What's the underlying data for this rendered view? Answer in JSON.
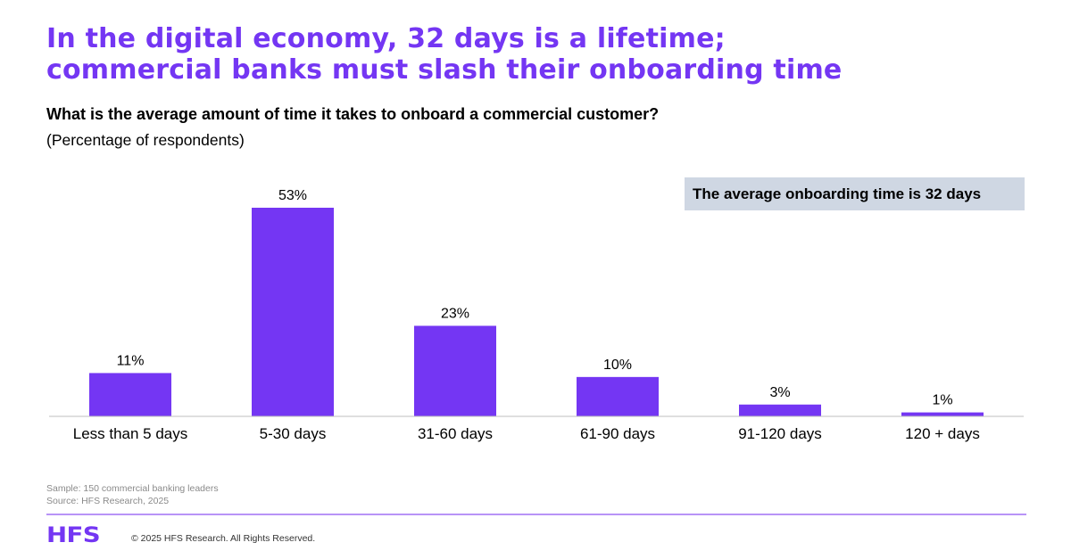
{
  "header": {
    "title_line1": "In the digital economy, 32 days is a lifetime;",
    "title_line2": "commercial banks must slash their onboarding time",
    "question": "What is the average amount of time it takes to onboard a commercial customer?",
    "subtitle": "(Percentage of respondents)"
  },
  "callout": {
    "text": "The average onboarding time is 32 days"
  },
  "chart_data": {
    "type": "bar",
    "categories": [
      "Less than 5 days",
      "5-30 days",
      "31-60 days",
      "61-90 days",
      "91-120 days",
      "120 + days"
    ],
    "values": [
      11,
      53,
      23,
      10,
      3,
      1
    ],
    "value_labels": [
      "11%",
      "53%",
      "23%",
      "10%",
      "3%",
      "1%"
    ],
    "unit": "%",
    "ylim": [
      0,
      53
    ],
    "grid": false,
    "bar_color": "#7436f3"
  },
  "footer": {
    "sample": "Sample: 150 commercial banking leaders",
    "source": "Source: HFS Research, 2025",
    "logo_text": "HFS",
    "copyright": "© 2025 HFS Research. All Rights Reserved."
  },
  "colors": {
    "brand": "#7436f3",
    "callout_bg": "#cfd7e3",
    "divider": "#b894f7"
  }
}
